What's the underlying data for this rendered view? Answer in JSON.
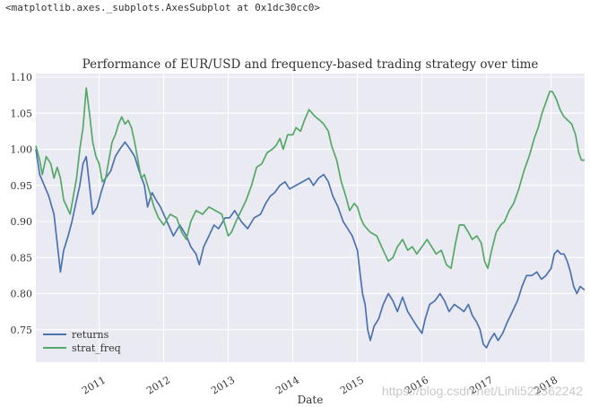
{
  "output_repr": "<matplotlib.axes._subplots.AxesSubplot at 0x1dc30cc0>",
  "watermark": "https://blog.csdn.net/Linli522362242",
  "colors": {
    "plot_bg": "#EAEAF2",
    "grid": "#FFFFFF",
    "returns": "#4C72B0",
    "strat_freq": "#55A868",
    "text": "#333333"
  },
  "chart_data": {
    "type": "line",
    "title": "Performance of EUR/USD and frequency-based trading strategy over time",
    "xlabel": "Date",
    "ylabel": "",
    "xlim": [
      2010.02,
      2018.52
    ],
    "ylim": [
      0.705,
      1.105
    ],
    "grid": true,
    "legend": {
      "position": "lower-left",
      "entries": [
        "returns",
        "strat_freq"
      ]
    },
    "x_ticks": [
      {
        "value": 2011,
        "label": "2011"
      },
      {
        "value": 2012,
        "label": "2012"
      },
      {
        "value": 2013,
        "label": "2013"
      },
      {
        "value": 2014,
        "label": "2014"
      },
      {
        "value": 2015,
        "label": "2015"
      },
      {
        "value": 2016,
        "label": "2016"
      },
      {
        "value": 2017,
        "label": "2017"
      },
      {
        "value": 2018,
        "label": "2018"
      }
    ],
    "y_ticks": [
      {
        "value": 0.75,
        "label": "0.75"
      },
      {
        "value": 0.8,
        "label": "0.80"
      },
      {
        "value": 0.85,
        "label": "0.85"
      },
      {
        "value": 0.9,
        "label": "0.90"
      },
      {
        "value": 0.95,
        "label": "0.95"
      },
      {
        "value": 1.0,
        "label": "1.00"
      },
      {
        "value": 1.05,
        "label": "1.05"
      },
      {
        "value": 1.1,
        "label": "1.10"
      }
    ],
    "series": [
      {
        "name": "returns",
        "color": "#4C72B0",
        "points": [
          [
            2010.02,
            1.0
          ],
          [
            2010.08,
            0.965
          ],
          [
            2010.15,
            0.95
          ],
          [
            2010.22,
            0.935
          ],
          [
            2010.3,
            0.91
          ],
          [
            2010.35,
            0.87
          ],
          [
            2010.4,
            0.83
          ],
          [
            2010.45,
            0.86
          ],
          [
            2010.52,
            0.88
          ],
          [
            2010.58,
            0.9
          ],
          [
            2010.65,
            0.93
          ],
          [
            2010.7,
            0.95
          ],
          [
            2010.75,
            0.98
          ],
          [
            2010.8,
            0.99
          ],
          [
            2010.85,
            0.95
          ],
          [
            2010.9,
            0.91
          ],
          [
            2010.97,
            0.92
          ],
          [
            2011.03,
            0.94
          ],
          [
            2011.1,
            0.96
          ],
          [
            2011.18,
            0.97
          ],
          [
            2011.25,
            0.99
          ],
          [
            2011.32,
            1.0
          ],
          [
            2011.4,
            1.01
          ],
          [
            2011.48,
            1.0
          ],
          [
            2011.55,
            0.99
          ],
          [
            2011.62,
            0.97
          ],
          [
            2011.7,
            0.95
          ],
          [
            2011.75,
            0.92
          ],
          [
            2011.82,
            0.94
          ],
          [
            2011.88,
            0.93
          ],
          [
            2011.95,
            0.92
          ],
          [
            2012.05,
            0.9
          ],
          [
            2012.15,
            0.88
          ],
          [
            2012.25,
            0.895
          ],
          [
            2012.35,
            0.88
          ],
          [
            2012.42,
            0.865
          ],
          [
            2012.5,
            0.855
          ],
          [
            2012.55,
            0.84
          ],
          [
            2012.62,
            0.865
          ],
          [
            2012.7,
            0.88
          ],
          [
            2012.78,
            0.895
          ],
          [
            2012.85,
            0.89
          ],
          [
            2012.95,
            0.905
          ],
          [
            2013.02,
            0.905
          ],
          [
            2013.1,
            0.915
          ],
          [
            2013.2,
            0.9
          ],
          [
            2013.3,
            0.89
          ],
          [
            2013.4,
            0.905
          ],
          [
            2013.5,
            0.91
          ],
          [
            2013.58,
            0.925
          ],
          [
            2013.65,
            0.935
          ],
          [
            2013.72,
            0.94
          ],
          [
            2013.8,
            0.95
          ],
          [
            2013.88,
            0.955
          ],
          [
            2013.95,
            0.945
          ],
          [
            2014.05,
            0.95
          ],
          [
            2014.15,
            0.955
          ],
          [
            2014.25,
            0.96
          ],
          [
            2014.32,
            0.95
          ],
          [
            2014.4,
            0.96
          ],
          [
            2014.48,
            0.965
          ],
          [
            2014.55,
            0.955
          ],
          [
            2014.62,
            0.935
          ],
          [
            2014.7,
            0.92
          ],
          [
            2014.78,
            0.9
          ],
          [
            2014.85,
            0.89
          ],
          [
            2014.92,
            0.88
          ],
          [
            2015.0,
            0.86
          ],
          [
            2015.04,
            0.83
          ],
          [
            2015.08,
            0.8
          ],
          [
            2015.12,
            0.785
          ],
          [
            2015.16,
            0.75
          ],
          [
            2015.2,
            0.735
          ],
          [
            2015.26,
            0.755
          ],
          [
            2015.33,
            0.765
          ],
          [
            2015.4,
            0.785
          ],
          [
            2015.48,
            0.8
          ],
          [
            2015.55,
            0.79
          ],
          [
            2015.62,
            0.775
          ],
          [
            2015.7,
            0.795
          ],
          [
            2015.78,
            0.775
          ],
          [
            2015.85,
            0.765
          ],
          [
            2015.92,
            0.755
          ],
          [
            2016.0,
            0.745
          ],
          [
            2016.05,
            0.765
          ],
          [
            2016.12,
            0.785
          ],
          [
            2016.2,
            0.79
          ],
          [
            2016.28,
            0.8
          ],
          [
            2016.35,
            0.79
          ],
          [
            2016.42,
            0.775
          ],
          [
            2016.5,
            0.785
          ],
          [
            2016.58,
            0.78
          ],
          [
            2016.65,
            0.775
          ],
          [
            2016.72,
            0.785
          ],
          [
            2016.78,
            0.77
          ],
          [
            2016.85,
            0.76
          ],
          [
            2016.9,
            0.75
          ],
          [
            2016.95,
            0.73
          ],
          [
            2017.0,
            0.725
          ],
          [
            2017.05,
            0.735
          ],
          [
            2017.12,
            0.745
          ],
          [
            2017.18,
            0.735
          ],
          [
            2017.25,
            0.745
          ],
          [
            2017.32,
            0.76
          ],
          [
            2017.4,
            0.775
          ],
          [
            2017.48,
            0.79
          ],
          [
            2017.55,
            0.81
          ],
          [
            2017.62,
            0.825
          ],
          [
            2017.7,
            0.825
          ],
          [
            2017.78,
            0.83
          ],
          [
            2017.85,
            0.82
          ],
          [
            2017.92,
            0.825
          ],
          [
            2018.0,
            0.835
          ],
          [
            2018.05,
            0.855
          ],
          [
            2018.1,
            0.86
          ],
          [
            2018.15,
            0.855
          ],
          [
            2018.2,
            0.855
          ],
          [
            2018.25,
            0.845
          ],
          [
            2018.3,
            0.83
          ],
          [
            2018.35,
            0.81
          ],
          [
            2018.4,
            0.8
          ],
          [
            2018.45,
            0.81
          ],
          [
            2018.52,
            0.805
          ]
        ]
      },
      {
        "name": "strat_freq",
        "color": "#55A868",
        "points": [
          [
            2010.02,
            1.005
          ],
          [
            2010.08,
            0.985
          ],
          [
            2010.12,
            0.965
          ],
          [
            2010.18,
            0.99
          ],
          [
            2010.25,
            0.98
          ],
          [
            2010.3,
            0.96
          ],
          [
            2010.35,
            0.975
          ],
          [
            2010.4,
            0.96
          ],
          [
            2010.45,
            0.93
          ],
          [
            2010.5,
            0.92
          ],
          [
            2010.55,
            0.91
          ],
          [
            2010.6,
            0.935
          ],
          [
            2010.65,
            0.96
          ],
          [
            2010.7,
            1.0
          ],
          [
            2010.75,
            1.03
          ],
          [
            2010.8,
            1.085
          ],
          [
            2010.85,
            1.05
          ],
          [
            2010.9,
            1.01
          ],
          [
            2010.95,
            0.99
          ],
          [
            2011.0,
            0.98
          ],
          [
            2011.05,
            0.955
          ],
          [
            2011.1,
            0.96
          ],
          [
            2011.15,
            0.985
          ],
          [
            2011.2,
            1.01
          ],
          [
            2011.25,
            1.02
          ],
          [
            2011.3,
            1.035
          ],
          [
            2011.35,
            1.045
          ],
          [
            2011.4,
            1.035
          ],
          [
            2011.45,
            1.04
          ],
          [
            2011.5,
            1.03
          ],
          [
            2011.55,
            1.01
          ],
          [
            2011.6,
            0.985
          ],
          [
            2011.65,
            0.96
          ],
          [
            2011.7,
            0.965
          ],
          [
            2011.75,
            0.95
          ],
          [
            2011.8,
            0.935
          ],
          [
            2011.85,
            0.92
          ],
          [
            2011.92,
            0.905
          ],
          [
            2012.0,
            0.895
          ],
          [
            2012.1,
            0.91
          ],
          [
            2012.2,
            0.905
          ],
          [
            2012.28,
            0.885
          ],
          [
            2012.35,
            0.875
          ],
          [
            2012.42,
            0.9
          ],
          [
            2012.5,
            0.915
          ],
          [
            2012.6,
            0.91
          ],
          [
            2012.7,
            0.92
          ],
          [
            2012.8,
            0.915
          ],
          [
            2012.9,
            0.91
          ],
          [
            2013.0,
            0.88
          ],
          [
            2013.05,
            0.885
          ],
          [
            2013.12,
            0.9
          ],
          [
            2013.2,
            0.915
          ],
          [
            2013.28,
            0.93
          ],
          [
            2013.36,
            0.95
          ],
          [
            2013.44,
            0.975
          ],
          [
            2013.52,
            0.98
          ],
          [
            2013.6,
            0.995
          ],
          [
            2013.68,
            1.0
          ],
          [
            2013.74,
            1.005
          ],
          [
            2013.8,
            1.015
          ],
          [
            2013.85,
            1.0
          ],
          [
            2013.92,
            1.02
          ],
          [
            2014.0,
            1.02
          ],
          [
            2014.05,
            1.03
          ],
          [
            2014.12,
            1.025
          ],
          [
            2014.18,
            1.04
          ],
          [
            2014.25,
            1.055
          ],
          [
            2014.3,
            1.05
          ],
          [
            2014.35,
            1.045
          ],
          [
            2014.42,
            1.04
          ],
          [
            2014.48,
            1.035
          ],
          [
            2014.55,
            1.025
          ],
          [
            2014.6,
            1.005
          ],
          [
            2014.68,
            0.985
          ],
          [
            2014.75,
            0.955
          ],
          [
            2014.82,
            0.935
          ],
          [
            2014.88,
            0.915
          ],
          [
            2014.95,
            0.925
          ],
          [
            2015.0,
            0.92
          ],
          [
            2015.05,
            0.905
          ],
          [
            2015.1,
            0.895
          ],
          [
            2015.15,
            0.89
          ],
          [
            2015.2,
            0.885
          ],
          [
            2015.3,
            0.88
          ],
          [
            2015.4,
            0.86
          ],
          [
            2015.48,
            0.845
          ],
          [
            2015.55,
            0.85
          ],
          [
            2015.62,
            0.865
          ],
          [
            2015.7,
            0.875
          ],
          [
            2015.78,
            0.86
          ],
          [
            2015.85,
            0.865
          ],
          [
            2015.92,
            0.855
          ],
          [
            2016.0,
            0.865
          ],
          [
            2016.08,
            0.875
          ],
          [
            2016.15,
            0.865
          ],
          [
            2016.22,
            0.855
          ],
          [
            2016.3,
            0.86
          ],
          [
            2016.38,
            0.84
          ],
          [
            2016.45,
            0.835
          ],
          [
            2016.52,
            0.87
          ],
          [
            2016.58,
            0.895
          ],
          [
            2016.65,
            0.895
          ],
          [
            2016.72,
            0.885
          ],
          [
            2016.78,
            0.875
          ],
          [
            2016.85,
            0.88
          ],
          [
            2016.92,
            0.87
          ],
          [
            2016.97,
            0.845
          ],
          [
            2017.02,
            0.835
          ],
          [
            2017.08,
            0.86
          ],
          [
            2017.15,
            0.885
          ],
          [
            2017.22,
            0.895
          ],
          [
            2017.28,
            0.9
          ],
          [
            2017.35,
            0.915
          ],
          [
            2017.42,
            0.925
          ],
          [
            2017.5,
            0.945
          ],
          [
            2017.58,
            0.97
          ],
          [
            2017.66,
            0.99
          ],
          [
            2017.74,
            1.015
          ],
          [
            2017.8,
            1.03
          ],
          [
            2017.86,
            1.05
          ],
          [
            2017.92,
            1.065
          ],
          [
            2017.98,
            1.08
          ],
          [
            2018.02,
            1.08
          ],
          [
            2018.08,
            1.07
          ],
          [
            2018.14,
            1.055
          ],
          [
            2018.2,
            1.045
          ],
          [
            2018.26,
            1.04
          ],
          [
            2018.32,
            1.035
          ],
          [
            2018.38,
            1.02
          ],
          [
            2018.43,
            0.995
          ],
          [
            2018.47,
            0.985
          ],
          [
            2018.52,
            0.985
          ]
        ]
      }
    ]
  }
}
